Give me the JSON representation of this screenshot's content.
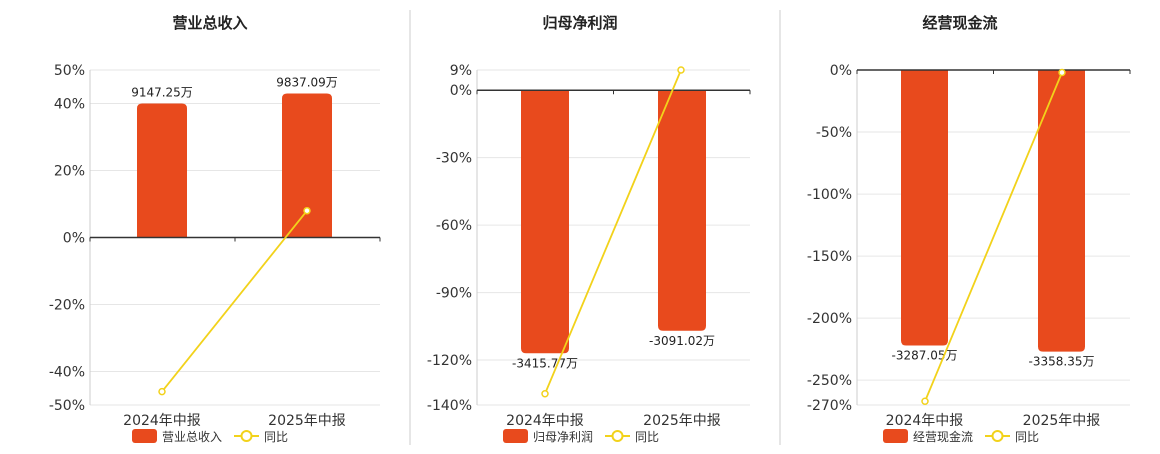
{
  "colors": {
    "bar": "#e84a1d",
    "line": "#f2d21b",
    "axis": "#333333",
    "grid": "#e6e6e6",
    "divider": "#cccccc"
  },
  "chart_data": [
    {
      "type": "bar",
      "title": "营业总收入",
      "categories": [
        "2024年中报",
        "2025年中报"
      ],
      "bar_series": {
        "name": "营业总收入",
        "values": [
          40,
          43
        ],
        "labels": [
          "9147.25万",
          "9837.09万"
        ]
      },
      "line_series": {
        "name": "同比",
        "values": [
          -46,
          8
        ]
      },
      "ylim": [
        -50,
        50
      ],
      "yticks": [
        50,
        40,
        20,
        0,
        -20,
        -40,
        -50
      ],
      "ytick_labels": [
        "50%",
        "40%",
        "20%",
        "0%",
        "-20%",
        "-40%",
        "-50%"
      ],
      "grid": true,
      "legend": "bottom-center"
    },
    {
      "type": "bar",
      "title": "归母净利润",
      "categories": [
        "2024年中报",
        "2025年中报"
      ],
      "bar_series": {
        "name": "归母净利润",
        "values": [
          -117,
          -107
        ],
        "labels": [
          "-3415.77万",
          "-3091.02万"
        ]
      },
      "line_series": {
        "name": "同比",
        "values": [
          -135,
          9
        ]
      },
      "ylim": [
        -140,
        9
      ],
      "yticks": [
        9,
        0,
        -30,
        -60,
        -90,
        -120,
        -140
      ],
      "ytick_labels": [
        "9%",
        "0%",
        "-30%",
        "-60%",
        "-90%",
        "-120%",
        "-140%"
      ],
      "grid": true,
      "legend": "bottom-center"
    },
    {
      "type": "bar",
      "title": "经营现金流",
      "categories": [
        "2024年中报",
        "2025年中报"
      ],
      "bar_series": {
        "name": "经营现金流",
        "values": [
          -222,
          -227
        ],
        "labels": [
          "-3287.05万",
          "-3358.35万"
        ]
      },
      "line_series": {
        "name": "同比",
        "values": [
          -267,
          -2
        ]
      },
      "ylim": [
        -270,
        0
      ],
      "yticks": [
        0,
        -50,
        -100,
        -150,
        -200,
        -250,
        -270
      ],
      "ytick_labels": [
        "0%",
        "-50%",
        "-100%",
        "-150%",
        "-200%",
        "-250%",
        "-270%"
      ],
      "grid": true,
      "legend": "bottom-center"
    }
  ]
}
